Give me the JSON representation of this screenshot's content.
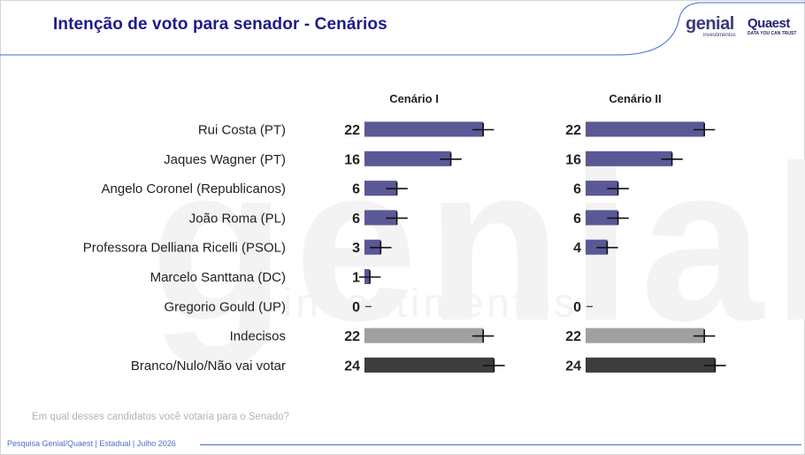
{
  "header": {
    "title": "Intenção de voto para senador - Cenários",
    "logo_genial": "genial",
    "logo_genial_sub": "investimentos",
    "logo_quaest": "Quaest",
    "logo_quaest_sub": "DATA YOU CAN TRUST"
  },
  "watermark": {
    "main": "genial",
    "sub": "investimentos"
  },
  "footer": {
    "question": "Em qual desses candidatos você votaria para o Senado?",
    "source": "Pesquisa Genial/Quaest | Estadual | Julho 2026"
  },
  "chart_data": {
    "type": "bar",
    "orientation": "horizontal",
    "categories": [
      "Rui Costa (PT)",
      "Jaques Wagner (PT)",
      "Angelo Coronel (Republicanos)",
      "João Roma (PL)",
      "Professora Delliana Ricelli (PSOL)",
      "Marcelo Santtana (DC)",
      "Gregorio Gould (UP)",
      "Indecisos",
      "Branco/Nulo/Não vai votar"
    ],
    "series": [
      {
        "name": "Cenário I",
        "values": [
          22,
          16,
          6,
          6,
          3,
          1,
          0,
          22,
          24
        ],
        "value_labels": [
          "22",
          "16",
          "6",
          "6",
          "3",
          "1",
          "0",
          "22",
          "24"
        ]
      },
      {
        "name": "Cenário II",
        "values": [
          22,
          16,
          6,
          6,
          4,
          null,
          0,
          22,
          24
        ],
        "value_labels": [
          "22",
          "16",
          "6",
          "6",
          "4",
          "",
          "0",
          "22",
          "24"
        ]
      }
    ],
    "error_margin": 2,
    "colors": {
      "candidate": "#5b5897",
      "undecided": "#a0a0a0",
      "blank": "#3d3d3d",
      "error_bar": "#111111"
    },
    "xlim": [
      0,
      30
    ],
    "grid": false
  }
}
